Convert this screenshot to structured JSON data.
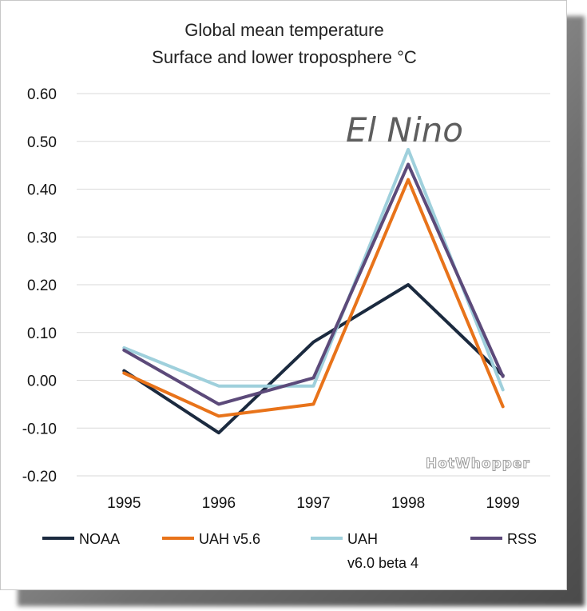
{
  "chart_data": {
    "type": "line",
    "title": "Global mean temperature",
    "subtitle": "Surface and lower troposphere °C",
    "categories": [
      "1995",
      "1996",
      "1997",
      "1998",
      "1999"
    ],
    "ylim": [
      -0.2,
      0.6
    ],
    "yticks": [
      "0.60",
      "0.50",
      "0.40",
      "0.30",
      "0.20",
      "0.10",
      "0.00",
      "-0.10",
      "-0.20"
    ],
    "ytick_values": [
      0.6,
      0.5,
      0.4,
      0.3,
      0.2,
      0.1,
      0.0,
      -0.1,
      -0.2
    ],
    "grid": true,
    "legend_position": "bottom",
    "series": [
      {
        "name": "NOAA",
        "color": "#1b2a3f",
        "values": [
          0.02,
          -0.11,
          0.08,
          0.2,
          0.01
        ]
      },
      {
        "name": "UAH v5.6",
        "color": "#e8731a",
        "values": [
          0.015,
          -0.075,
          -0.05,
          0.42,
          -0.055
        ]
      },
      {
        "name": "UAH v6.0 beta 4",
        "name_line1": "UAH",
        "name_line2": "v6.0 beta 4",
        "color": "#9fd0dc",
        "values": [
          0.068,
          -0.012,
          -0.012,
          0.483,
          -0.02
        ]
      },
      {
        "name": "RSS",
        "color": "#5c4a7a",
        "values": [
          0.063,
          -0.05,
          0.005,
          0.452,
          0.008
        ]
      }
    ],
    "annotations": [
      "El Nino"
    ]
  },
  "watermark": "HotWhopper"
}
